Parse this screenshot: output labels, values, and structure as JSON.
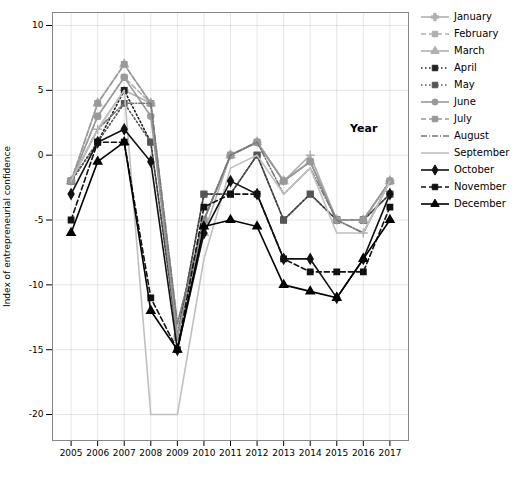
{
  "chart_data": {
    "type": "line",
    "ylabel": "Index of entrepreneurial confidence",
    "x": [
      2005,
      2006,
      2007,
      2008,
      2009,
      2010,
      2011,
      2012,
      2013,
      2014,
      2015,
      2016,
      2017
    ],
    "xlim": [
      2004.3,
      2017.7
    ],
    "xticks": [
      2005,
      2006,
      2007,
      2008,
      2009,
      2010,
      2011,
      2012,
      2013,
      2014,
      2015,
      2016,
      2017
    ],
    "ylim": [
      -22,
      11
    ],
    "yticks": [
      -20,
      -15,
      -10,
      -5,
      0,
      5,
      10
    ],
    "grid": true,
    "legend": "right",
    "annotations": [
      {
        "text": "Year",
        "x": 2015.5,
        "y": 1.8
      }
    ],
    "series": [
      {
        "name": "January",
        "color": "#b0b0b0",
        "line_style": "solid",
        "marker": "plus",
        "values": [
          -2,
          2,
          5,
          4,
          -13,
          -5,
          0,
          1,
          -2,
          0,
          -5,
          -6,
          -2
        ]
      },
      {
        "name": "February",
        "color": "#b0b0b0",
        "line_style": "dashed",
        "marker": "square",
        "values": [
          -2,
          3,
          6,
          4,
          -14,
          -5,
          0,
          1,
          -2,
          -0.5,
          -5,
          -5,
          -2
        ]
      },
      {
        "name": "March",
        "color": "#b0b0b0",
        "line_style": "solid",
        "marker": "triangle",
        "values": [
          -2,
          4,
          7,
          4,
          -15,
          -6,
          0,
          1,
          -2,
          -0.5,
          -5,
          -5,
          -2
        ]
      },
      {
        "name": "April",
        "color": "#222222",
        "line_style": "dotted",
        "marker": "square",
        "values": [
          -2,
          1,
          5,
          1,
          -14,
          -3,
          -3,
          0,
          -5,
          -3,
          -5,
          -5,
          -3
        ]
      },
      {
        "name": "May",
        "color": "#555555",
        "line_style": "dotted",
        "marker": "square",
        "values": [
          -2,
          1,
          4,
          1,
          -14,
          -3,
          -3,
          0,
          -5,
          -3,
          -5,
          -5,
          -3
        ]
      },
      {
        "name": "June",
        "color": "#999999",
        "line_style": "solid",
        "marker": "circle",
        "values": [
          -2,
          3,
          6,
          3,
          -14,
          -5,
          0,
          1,
          -2,
          -0.5,
          -5,
          -5,
          -2
        ]
      },
      {
        "name": "July",
        "color": "#999999",
        "line_style": "dashed",
        "marker": "square",
        "values": [
          -2,
          4,
          7,
          4,
          -14,
          -5,
          0,
          1,
          -2,
          -0.5,
          -5,
          -5,
          -2
        ]
      },
      {
        "name": "August",
        "color": "#777777",
        "line_style": "dashdot",
        "values": [
          -2,
          2,
          4,
          4,
          -13,
          -5,
          0,
          1,
          -3,
          -1,
          -5,
          -6,
          -2
        ]
      },
      {
        "name": "September",
        "color": "#c0c0c0",
        "line_style": "solid",
        "values": [
          -2,
          2,
          5,
          -20,
          -20,
          -8,
          -1,
          0,
          -3,
          -1,
          -6,
          -6,
          -2
        ]
      },
      {
        "name": "October",
        "color": "#111111",
        "line_style": "solid",
        "marker": "diamond",
        "values": [
          -3,
          1,
          2,
          -0.5,
          -15,
          -6,
          -2,
          -3,
          -8,
          -8,
          -11,
          -8,
          -3
        ]
      },
      {
        "name": "November",
        "color": "#111111",
        "line_style": "dashed",
        "marker": "square",
        "values": [
          -5,
          1,
          1,
          -11,
          -15,
          -4,
          -3,
          -3,
          -8,
          -9,
          -9,
          -9,
          -4
        ]
      },
      {
        "name": "December",
        "color": "#000000",
        "line_style": "solid",
        "marker": "triangle",
        "values": [
          -6,
          -0.5,
          1,
          -12,
          -15,
          -5.5,
          -5,
          -5.5,
          -10,
          -10.5,
          -11,
          -8,
          -5
        ]
      }
    ]
  }
}
